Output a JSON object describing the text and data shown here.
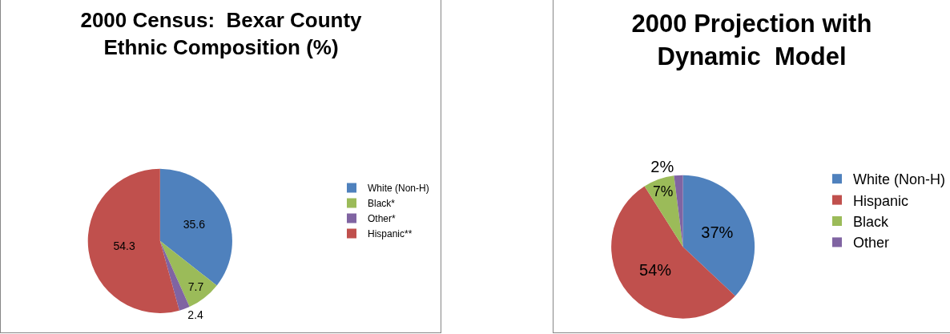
{
  "chart_data": [
    {
      "type": "pie",
      "title": "2000 Census:  Bexar County Ethnic Composition (%)",
      "categories": [
        "White (Non-H)",
        "Black*",
        "Other*",
        "Hispanic**"
      ],
      "values": [
        35.6,
        7.7,
        2.4,
        54.3
      ],
      "colors": [
        "#4f81bd",
        "#9bbb59",
        "#8064a2",
        "#c0504d"
      ],
      "data_labels": true,
      "legend": "right"
    },
    {
      "type": "pie",
      "title": "2000 Projection with Dynamic  Model",
      "categories": [
        "White (Non-H)",
        "Hispanic",
        "Black",
        "Other"
      ],
      "values": [
        37,
        54,
        7,
        2
      ],
      "colors": [
        "#4f81bd",
        "#c0504d",
        "#9bbb59",
        "#8064a2"
      ],
      "value_labels": [
        "37%",
        "54%",
        "7%",
        "2%"
      ],
      "legend": "right"
    }
  ]
}
